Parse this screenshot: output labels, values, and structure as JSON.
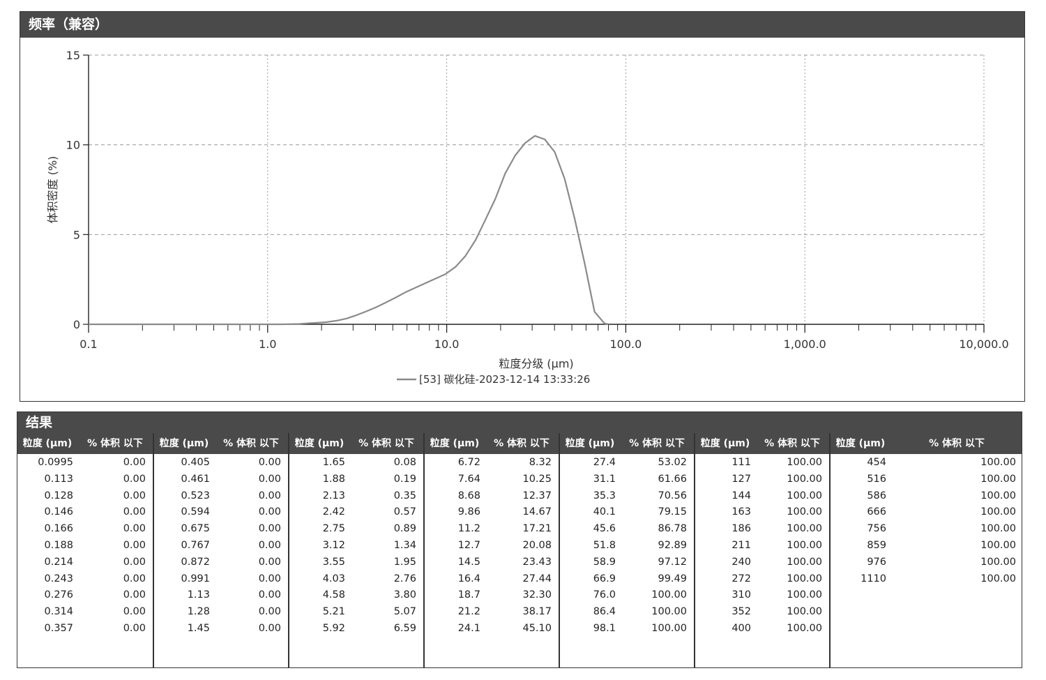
{
  "chart_panel": {
    "title": "频率（兼容）"
  },
  "chart_data": {
    "type": "line",
    "ylabel": "体积密度 (%)",
    "xlabel": "粒度分级 (μm)",
    "x_scale": "log",
    "xlim": [
      0.1,
      10000
    ],
    "ylim": [
      0,
      15
    ],
    "x_ticks": [
      0.1,
      1.0,
      10.0,
      100.0,
      1000.0,
      10000.0
    ],
    "x_tick_labels": [
      "0.1",
      "1.0",
      "10.0",
      "100.0",
      "1,000.0",
      "10,000.0"
    ],
    "y_ticks": [
      0,
      5,
      10,
      15
    ],
    "y_tick_labels": [
      "0",
      "5",
      "10",
      "15"
    ],
    "grid": true,
    "legend_position": "bottom-center",
    "line_color": "#8a8a8a",
    "series": [
      {
        "name": "[53] 碳化硅-2023-12-14 13:33:26",
        "x": [
          0.1,
          1.0,
          1.2,
          1.5,
          1.65,
          1.88,
          2.13,
          2.42,
          2.75,
          3.12,
          3.55,
          4.03,
          4.58,
          5.21,
          5.92,
          6.72,
          7.64,
          8.68,
          9.86,
          11.2,
          12.7,
          14.5,
          16.4,
          18.7,
          21.2,
          24.1,
          27.4,
          31.1,
          35.3,
          40.1,
          45.6,
          51.8,
          58.9,
          66.9,
          76.0,
          80.0
        ],
        "y": [
          0,
          0,
          0,
          0.02,
          0.05,
          0.08,
          0.12,
          0.2,
          0.32,
          0.5,
          0.72,
          0.95,
          1.22,
          1.5,
          1.8,
          2.05,
          2.3,
          2.55,
          2.8,
          3.2,
          3.8,
          4.7,
          5.8,
          7.0,
          8.4,
          9.4,
          10.1,
          10.5,
          10.3,
          9.6,
          8.1,
          5.9,
          3.4,
          0.7,
          0.05,
          0
        ]
      }
    ]
  },
  "results": {
    "title": "结果",
    "header_size": "粒度 (μm)",
    "header_pct": "% 体积 以下",
    "columns": [
      {
        "rows": [
          [
            "0.0995",
            "0.00"
          ],
          [
            "0.113",
            "0.00"
          ],
          [
            "0.128",
            "0.00"
          ],
          [
            "0.146",
            "0.00"
          ],
          [
            "0.166",
            "0.00"
          ],
          [
            "0.188",
            "0.00"
          ],
          [
            "0.214",
            "0.00"
          ],
          [
            "0.243",
            "0.00"
          ],
          [
            "0.276",
            "0.00"
          ],
          [
            "0.314",
            "0.00"
          ],
          [
            "0.357",
            "0.00"
          ]
        ]
      },
      {
        "rows": [
          [
            "0.405",
            "0.00"
          ],
          [
            "0.461",
            "0.00"
          ],
          [
            "0.523",
            "0.00"
          ],
          [
            "0.594",
            "0.00"
          ],
          [
            "0.675",
            "0.00"
          ],
          [
            "0.767",
            "0.00"
          ],
          [
            "0.872",
            "0.00"
          ],
          [
            "0.991",
            "0.00"
          ],
          [
            "1.13",
            "0.00"
          ],
          [
            "1.28",
            "0.00"
          ],
          [
            "1.45",
            "0.00"
          ]
        ]
      },
      {
        "rows": [
          [
            "1.65",
            "0.08"
          ],
          [
            "1.88",
            "0.19"
          ],
          [
            "2.13",
            "0.35"
          ],
          [
            "2.42",
            "0.57"
          ],
          [
            "2.75",
            "0.89"
          ],
          [
            "3.12",
            "1.34"
          ],
          [
            "3.55",
            "1.95"
          ],
          [
            "4.03",
            "2.76"
          ],
          [
            "4.58",
            "3.80"
          ],
          [
            "5.21",
            "5.07"
          ],
          [
            "5.92",
            "6.59"
          ]
        ]
      },
      {
        "rows": [
          [
            "6.72",
            "8.32"
          ],
          [
            "7.64",
            "10.25"
          ],
          [
            "8.68",
            "12.37"
          ],
          [
            "9.86",
            "14.67"
          ],
          [
            "11.2",
            "17.21"
          ],
          [
            "12.7",
            "20.08"
          ],
          [
            "14.5",
            "23.43"
          ],
          [
            "16.4",
            "27.44"
          ],
          [
            "18.7",
            "32.30"
          ],
          [
            "21.2",
            "38.17"
          ],
          [
            "24.1",
            "45.10"
          ]
        ]
      },
      {
        "rows": [
          [
            "27.4",
            "53.02"
          ],
          [
            "31.1",
            "61.66"
          ],
          [
            "35.3",
            "70.56"
          ],
          [
            "40.1",
            "79.15"
          ],
          [
            "45.6",
            "86.78"
          ],
          [
            "51.8",
            "92.89"
          ],
          [
            "58.9",
            "97.12"
          ],
          [
            "66.9",
            "99.49"
          ],
          [
            "76.0",
            "100.00"
          ],
          [
            "86.4",
            "100.00"
          ],
          [
            "98.1",
            "100.00"
          ]
        ]
      },
      {
        "rows": [
          [
            "111",
            "100.00"
          ],
          [
            "127",
            "100.00"
          ],
          [
            "144",
            "100.00"
          ],
          [
            "163",
            "100.00"
          ],
          [
            "186",
            "100.00"
          ],
          [
            "211",
            "100.00"
          ],
          [
            "240",
            "100.00"
          ],
          [
            "272",
            "100.00"
          ],
          [
            "310",
            "100.00"
          ],
          [
            "352",
            "100.00"
          ],
          [
            "400",
            "100.00"
          ]
        ]
      },
      {
        "rows": [
          [
            "454",
            "100.00"
          ],
          [
            "516",
            "100.00"
          ],
          [
            "586",
            "100.00"
          ],
          [
            "666",
            "100.00"
          ],
          [
            "756",
            "100.00"
          ],
          [
            "859",
            "100.00"
          ],
          [
            "976",
            "100.00"
          ],
          [
            "1110",
            "100.00"
          ]
        ]
      }
    ]
  }
}
